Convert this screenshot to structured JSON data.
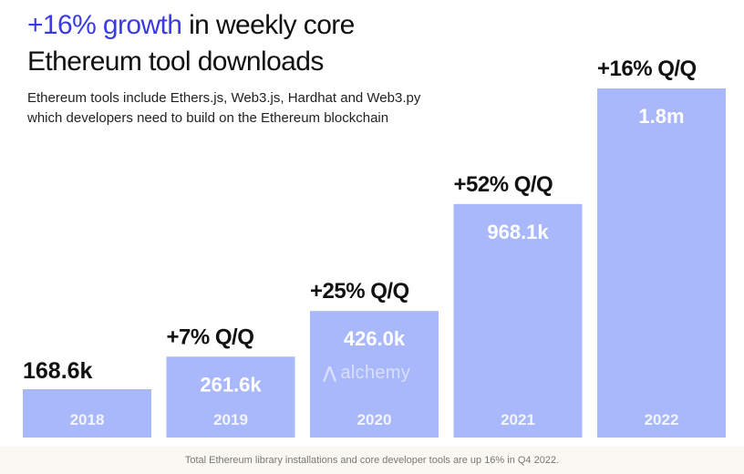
{
  "header": {
    "title_accent": "+16% growth",
    "title_rest": " in weekly core",
    "title_line2": "Ethereum tool downloads",
    "subtitle_line1": "Ethereum tools include Ethers.js, Web3.js, Hardhat and Web3.py",
    "subtitle_line2": "which developers need to build on the Ethereum blockchain"
  },
  "colors": {
    "accent": "#3b3be6",
    "bar": "#a9b8fb",
    "text": "#111111",
    "bar_text": "#ffffff",
    "footer_bg": "#fbf7f2"
  },
  "watermark": {
    "logo": "⋀",
    "text": "alchemy"
  },
  "footer": {
    "note": "Total Ethereum library installations and core developer tools are up 16% in Q4 2022."
  },
  "chart_data": {
    "type": "bar",
    "title": "+16% growth in weekly core Ethereum tool downloads",
    "categories": [
      "2018",
      "2019",
      "2020",
      "2021",
      "2022"
    ],
    "values": [
      168600,
      261600,
      426000,
      968100,
      1800000
    ],
    "value_labels": [
      "168.6k",
      "261.6k",
      "426.0k",
      "968.1k",
      "1.8m"
    ],
    "growth_labels": [
      "",
      "+7% Q/Q",
      "+25% Q/Q",
      "+52% Q/Q",
      "+16% Q/Q"
    ],
    "xlabel": "",
    "ylabel": "",
    "grid": false
  }
}
